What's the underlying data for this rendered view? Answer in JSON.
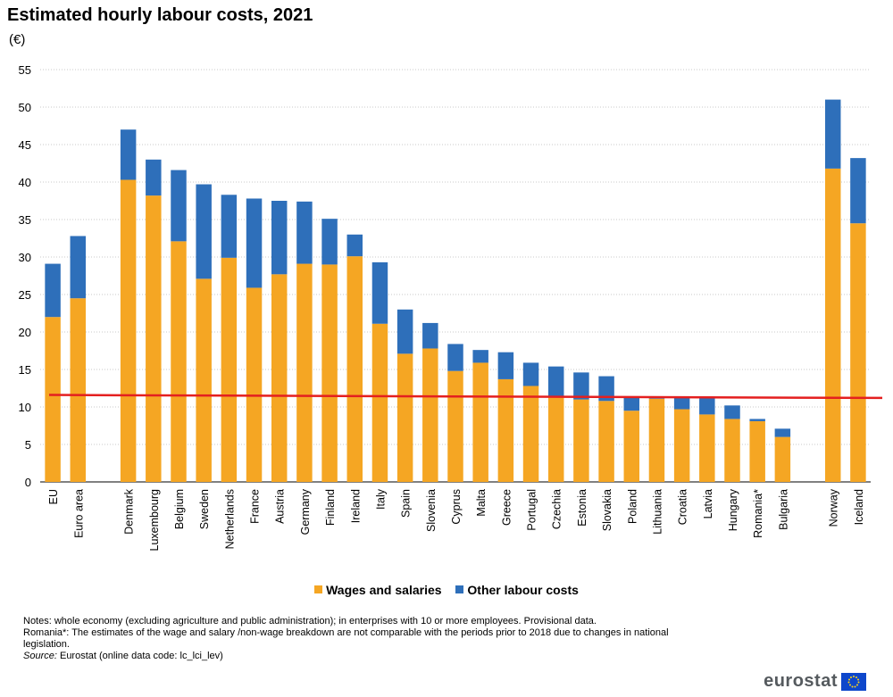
{
  "chart_data": {
    "type": "bar",
    "stacked": true,
    "title": "Estimated hourly labour costs, 2021",
    "unit": "(€)",
    "ylim": [
      0,
      55
    ],
    "yticks": [
      0,
      5,
      10,
      15,
      20,
      25,
      30,
      35,
      40,
      45,
      50,
      55
    ],
    "grid": true,
    "legend_position": "bottom",
    "groups": [
      [
        "EU",
        "Euro area"
      ],
      [
        "Denmark",
        "Luxembourg",
        "Belgium",
        "Sweden",
        "Netherlands",
        "France",
        "Austria",
        "Germany",
        "Finland",
        "Ireland",
        "Italy",
        "Spain",
        "Slovenia",
        "Cyprus",
        "Malta",
        "Greece",
        "Portugal",
        "Czechia",
        "Estonia",
        "Slovakia",
        "Poland",
        "Lithuania",
        "Croatia",
        "Latvia",
        "Hungary",
        "Romania*",
        "Bulgaria"
      ],
      [
        "Norway",
        "Iceland"
      ]
    ],
    "categories": [
      "EU",
      "Euro area",
      "Denmark",
      "Luxembourg",
      "Belgium",
      "Sweden",
      "Netherlands",
      "France",
      "Austria",
      "Germany",
      "Finland",
      "Ireland",
      "Italy",
      "Spain",
      "Slovenia",
      "Cyprus",
      "Malta",
      "Greece",
      "Portugal",
      "Czechia",
      "Estonia",
      "Slovakia",
      "Poland",
      "Lithuania",
      "Croatia",
      "Latvia",
      "Hungary",
      "Romania*",
      "Bulgaria",
      "Norway",
      "Iceland"
    ],
    "series": [
      {
        "name": "Wages and salaries",
        "color": "#f5a623",
        "values": [
          22.0,
          24.5,
          40.3,
          38.2,
          32.1,
          27.1,
          29.9,
          25.9,
          27.7,
          29.1,
          29.0,
          30.1,
          21.1,
          17.1,
          17.8,
          14.8,
          15.9,
          13.7,
          12.8,
          11.3,
          11.0,
          10.8,
          9.5,
          11.1,
          9.7,
          9.0,
          8.4,
          8.1,
          6.0,
          41.8,
          34.5
        ]
      },
      {
        "name": "Other labour costs",
        "color": "#2e6fba",
        "values": [
          7.1,
          8.3,
          6.7,
          4.8,
          9.5,
          12.6,
          8.4,
          11.9,
          9.8,
          8.3,
          6.1,
          2.9,
          8.2,
          5.9,
          3.4,
          3.6,
          1.7,
          3.6,
          3.1,
          4.1,
          3.6,
          3.3,
          1.9,
          0.2,
          1.6,
          2.3,
          1.8,
          0.3,
          1.1,
          9.2,
          8.7
        ]
      }
    ],
    "reference_line": {
      "color": "#e41f1f",
      "y_start": 11.6,
      "y_end": 11.2
    }
  },
  "notes": {
    "line1": "Notes: whole economy (excluding agriculture and public administration); in enterprises with 10 or more employees. Provisional data.",
    "line2": "Romania*: The estimates of the wage and salary /non-wage breakdown are not comparable with the periods prior to 2018 due to changes in national legislation.",
    "source_label": "Source:",
    "source_text": " Eurostat (online data code: lc_lci_lev)"
  },
  "logo": {
    "text": "eurostat"
  }
}
